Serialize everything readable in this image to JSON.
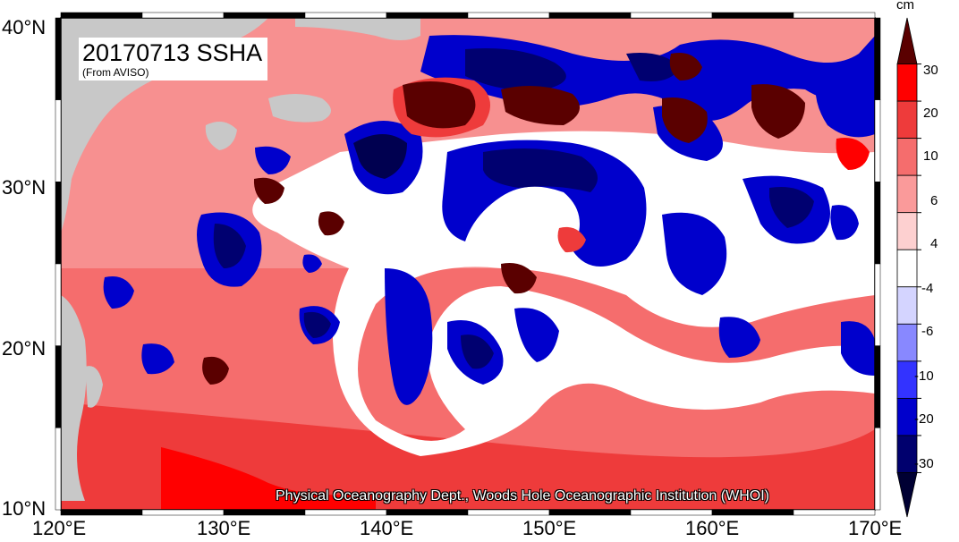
{
  "title": "20170713 SSHA",
  "subtitle": "(From AVISO)",
  "credit": "Physical Oceanography Dept., Woods Hole Oceanographic Institution (WHOI)",
  "lon_ticks": [
    "120°E",
    "130°E",
    "140°E",
    "150°E",
    "160°E",
    "170°E"
  ],
  "lat_ticks": [
    "40°N",
    "30°N",
    "20°N",
    "10°N"
  ],
  "colorbar": {
    "unit": "cm",
    "labels": [
      "30",
      "20",
      "10",
      "6",
      "4",
      "-4",
      "-6",
      "-10",
      "-20",
      "-30"
    ],
    "colors": [
      "#5a0000",
      "#ff0000",
      "#ee3b3b",
      "#f56d6d",
      "#fa9a9a",
      "#fdd0d0",
      "#ffffff",
      "#d4d4ff",
      "#8888ff",
      "#3333ff",
      "#0000cc",
      "#00006e",
      "#000033"
    ]
  },
  "colors": {
    "land": "#c8c8c8",
    "warm_deep": "#5a0000",
    "warm": "#ee3b3b",
    "cool": "#0000cc",
    "cool_deep": "#000040"
  }
}
